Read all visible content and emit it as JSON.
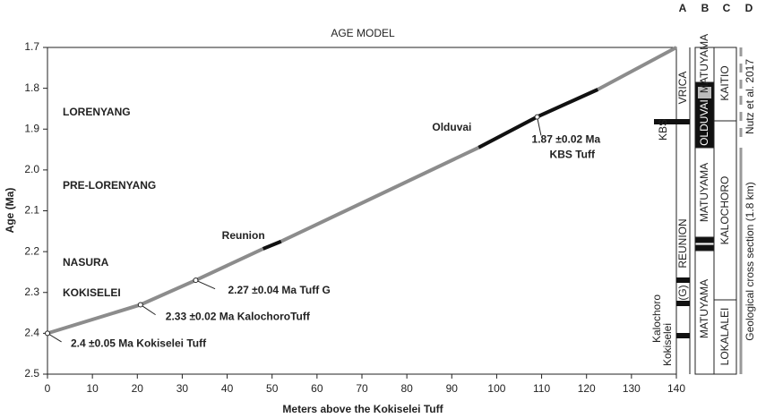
{
  "chart_data": {
    "type": "line",
    "title": "AGE MODEL",
    "x_label": "Meters above the Kokiselei Tuff",
    "y_label": "Age (Ma)",
    "xlim": [
      0,
      140
    ],
    "xticks": [
      0,
      10,
      20,
      30,
      40,
      50,
      60,
      70,
      80,
      90,
      100,
      110,
      120,
      130,
      140
    ],
    "ylim": [
      1.7,
      2.5
    ],
    "y_inverted": true,
    "yticks": [
      1.7,
      1.8,
      1.9,
      {
        "value": 2,
        "label": "2.0"
      },
      2.1,
      2.2,
      2.3,
      2.4,
      2.5
    ],
    "x": [
      0,
      20.7,
      33,
      48,
      52,
      96,
      109,
      122.5,
      140
    ],
    "series": [
      {
        "color": "#8c8c8c",
        "values": [
          2.4,
          2.33,
          2.27,
          2.193,
          2.175,
          1.945,
          1.87,
          1.803,
          1.7
        ]
      },
      {
        "name": "Reunion",
        "color": "#111111",
        "values": [
          null,
          null,
          null,
          2.193,
          2.175,
          null,
          null,
          null,
          null
        ]
      },
      {
        "name": "Olduvai",
        "color": "#111111",
        "values": [
          null,
          null,
          null,
          null,
          null,
          1.945,
          1.87,
          1.803,
          null
        ]
      }
    ],
    "tuffs": [
      {
        "x": 0,
        "y": 2.4,
        "label": [
          "2.4 ±0.05 Ma Kokiselei Tuff"
        ]
      },
      {
        "x": 20.7,
        "y": 2.33,
        "label": [
          "2.33 ±0.02 Ma KalochoroTuff"
        ]
      },
      {
        "x": 33,
        "y": 2.27,
        "label": [
          "2.27 ±0.04 Ma Tuff G"
        ]
      },
      {
        "x": 109,
        "y": 1.87,
        "label": [
          "1.87 ±0.02 Ma",
          "KBS Tuff"
        ]
      }
    ],
    "members": [
      "LORENYANG",
      "PRE-LORENYANG",
      "NASURA",
      "KOKISELEI"
    ]
  },
  "columns": {
    "headers": [
      "A",
      "B",
      "C",
      "D"
    ],
    "a": [
      "KBS",
      "VRICA",
      "REUNION",
      "(G)",
      "Kalochoro",
      "Kokiselei"
    ],
    "b": [
      "MATUYAMA",
      "OLDUVAI",
      "MATUYAMA",
      "MATUYAMA"
    ],
    "c": [
      "KAITIO",
      "KALOCHORO",
      "LOKALALEI"
    ],
    "d": [
      "Nutz et al. 2017",
      "Geological cross section (1.8 km)"
    ]
  }
}
